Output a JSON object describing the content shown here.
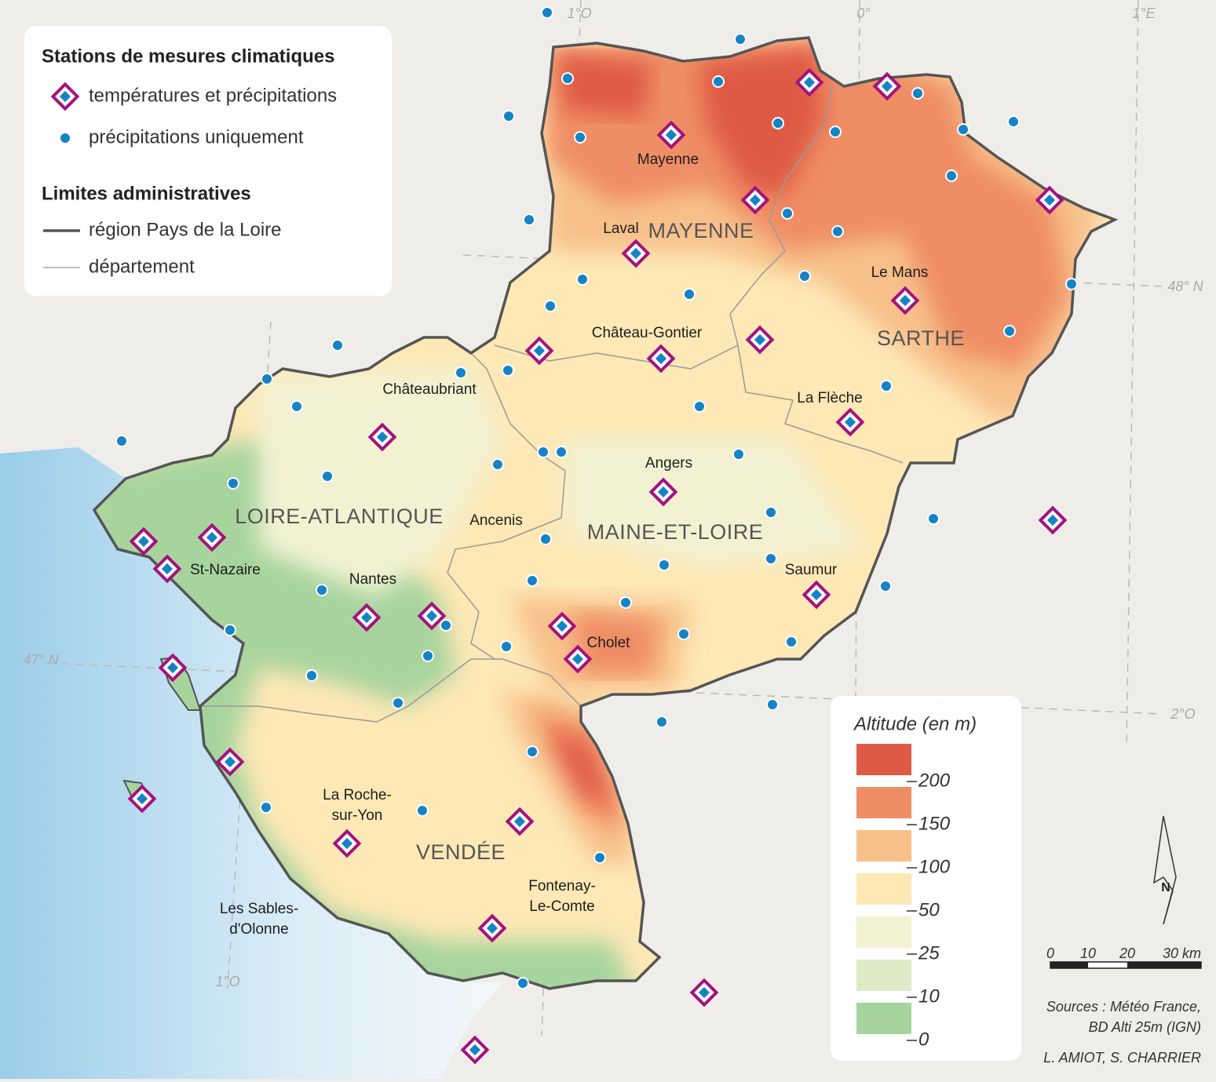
{
  "legend": {
    "stations_title": "Stations de mesures climatiques",
    "stations": [
      "températures et précipitations",
      "précipitations uniquement"
    ],
    "limits_title": "Limites administratives",
    "limits": [
      "région Pays de la Loire",
      "département"
    ]
  },
  "graticule": [
    "1°O",
    "0°",
    "1°E",
    "48° N",
    "47° N",
    "2°O",
    "1°O"
  ],
  "departments": [
    "MAYENNE",
    "SARTHE",
    "LOIRE-ATLANTIQUE",
    "MAINE-ET-LOIRE",
    "VENDÉE"
  ],
  "cities": [
    [
      "Mayenne"
    ],
    [
      "Laval"
    ],
    [
      "Le Mans"
    ],
    [
      "Château-Gontier"
    ],
    [
      "Châteaubriant"
    ],
    [
      "La Flèche"
    ],
    [
      "Angers"
    ],
    [
      "Ancenis"
    ],
    [
      "St-Nazaire"
    ],
    [
      "Nantes"
    ],
    [
      "Saumur"
    ],
    [
      "Cholet"
    ],
    [
      "La Roche-",
      "sur-Yon"
    ],
    [
      "Les Sables-",
      "d'Olonne"
    ],
    [
      "Fontenay-",
      "Le-Comte"
    ]
  ],
  "altitude": {
    "title": "Altitude (en m)",
    "colors": [
      "#df5a45",
      "#ef8d65",
      "#f7c08a",
      "#fde8b6",
      "#f2f2d3",
      "#dcebc6",
      "#a7d49d"
    ],
    "ticks": [
      200,
      150,
      100,
      50,
      25,
      10,
      0
    ]
  },
  "north": "N",
  "scale": {
    "ticks": [
      0,
      10,
      20,
      {
        "value": 30,
        "label": "30 km"
      }
    ]
  },
  "sources": [
    "Sources : Météo France,",
    "BD Alti 25m (IGN)"
  ],
  "authors": "L. AMIOT, S. CHARRIER"
}
